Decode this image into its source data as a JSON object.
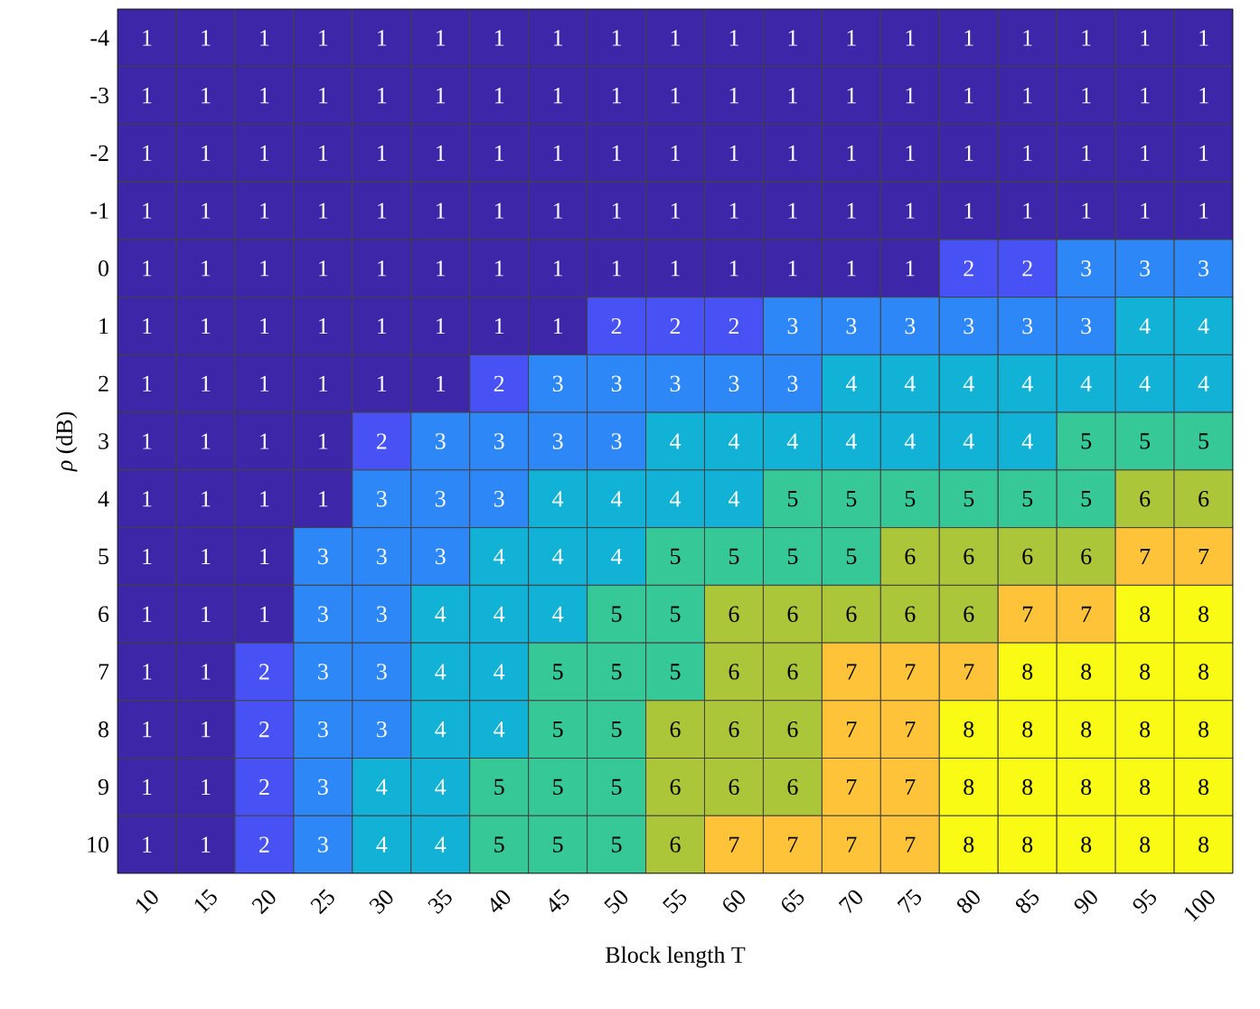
{
  "chart_data": {
    "type": "heatmap",
    "xlabel": "Block length T",
    "ylabel": "*ρ* (dB)",
    "categories": [
      "10",
      "15",
      "20",
      "25",
      "30",
      "35",
      "40",
      "45",
      "50",
      "55",
      "60",
      "65",
      "70",
      "75",
      "80",
      "85",
      "90",
      "95",
      "100"
    ],
    "y_categories": [
      "-4",
      "-3",
      "-2",
      "-1",
      "0",
      "1",
      "2",
      "3",
      "4",
      "5",
      "6",
      "7",
      "8",
      "9",
      "10"
    ],
    "cells": [
      [
        1,
        1,
        1,
        1,
        1,
        1,
        1,
        1,
        1,
        1,
        1,
        1,
        1,
        1,
        1,
        1,
        1,
        1,
        1
      ],
      [
        1,
        1,
        1,
        1,
        1,
        1,
        1,
        1,
        1,
        1,
        1,
        1,
        1,
        1,
        1,
        1,
        1,
        1,
        1
      ],
      [
        1,
        1,
        1,
        1,
        1,
        1,
        1,
        1,
        1,
        1,
        1,
        1,
        1,
        1,
        1,
        1,
        1,
        1,
        1
      ],
      [
        1,
        1,
        1,
        1,
        1,
        1,
        1,
        1,
        1,
        1,
        1,
        1,
        1,
        1,
        1,
        1,
        1,
        1,
        1
      ],
      [
        1,
        1,
        1,
        1,
        1,
        1,
        1,
        1,
        1,
        1,
        1,
        1,
        1,
        1,
        2,
        2,
        3,
        3,
        3
      ],
      [
        1,
        1,
        1,
        1,
        1,
        1,
        1,
        1,
        2,
        2,
        2,
        3,
        3,
        3,
        3,
        3,
        3,
        4,
        4
      ],
      [
        1,
        1,
        1,
        1,
        1,
        1,
        2,
        3,
        3,
        3,
        3,
        3,
        4,
        4,
        4,
        4,
        4,
        4,
        4
      ],
      [
        1,
        1,
        1,
        1,
        2,
        3,
        3,
        3,
        3,
        4,
        4,
        4,
        4,
        4,
        4,
        4,
        5,
        5,
        5
      ],
      [
        1,
        1,
        1,
        1,
        3,
        3,
        3,
        4,
        4,
        4,
        4,
        5,
        5,
        5,
        5,
        5,
        5,
        6,
        6
      ],
      [
        1,
        1,
        1,
        3,
        3,
        3,
        4,
        4,
        4,
        5,
        5,
        5,
        5,
        6,
        6,
        6,
        6,
        7,
        7
      ],
      [
        1,
        1,
        1,
        3,
        3,
        4,
        4,
        4,
        5,
        5,
        6,
        6,
        6,
        6,
        6,
        7,
        7,
        8,
        8
      ],
      [
        1,
        1,
        2,
        3,
        3,
        4,
        4,
        5,
        5,
        5,
        6,
        6,
        7,
        7,
        7,
        8,
        8,
        8,
        8
      ],
      [
        1,
        1,
        2,
        3,
        3,
        4,
        4,
        5,
        5,
        6,
        6,
        6,
        7,
        7,
        8,
        8,
        8,
        8,
        8
      ],
      [
        1,
        1,
        2,
        3,
        4,
        4,
        5,
        5,
        5,
        6,
        6,
        6,
        7,
        7,
        8,
        8,
        8,
        8,
        8
      ],
      [
        1,
        1,
        2,
        3,
        4,
        4,
        5,
        5,
        5,
        6,
        7,
        7,
        7,
        7,
        8,
        8,
        8,
        8,
        8
      ]
    ],
    "data_labels": true
  }
}
